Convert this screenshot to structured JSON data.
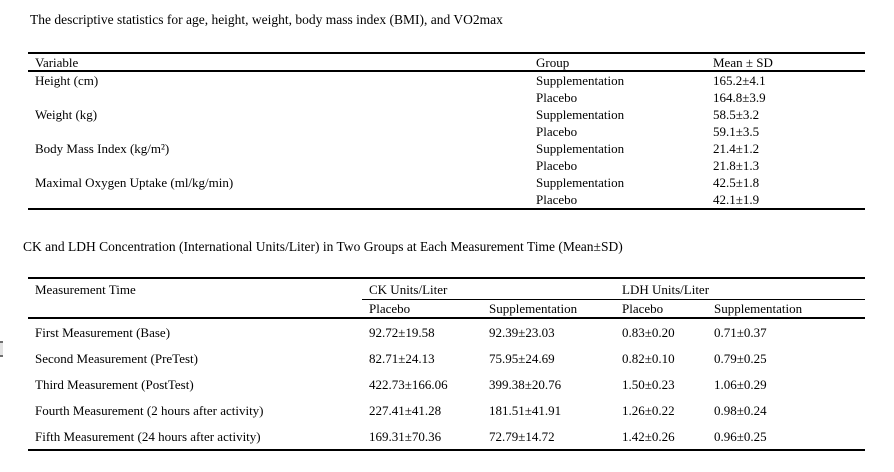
{
  "table1": {
    "caption": "The descriptive statistics for age, height, weight, body mass index (BMI), and VO2max",
    "headers": {
      "variable": "Variable",
      "group": "Group",
      "mean_sd": "Mean ± SD"
    },
    "rows": [
      {
        "variable": "Height (cm)",
        "group": "Supplementation",
        "mean_sd": "165.2±4.1"
      },
      {
        "variable": "",
        "group": "Placebo",
        "mean_sd": "164.8±3.9"
      },
      {
        "variable": "Weight (kg)",
        "group": "Supplementation",
        "mean_sd": "58.5±3.2"
      },
      {
        "variable": "",
        "group": "Placebo",
        "mean_sd": "59.1±3.5"
      },
      {
        "variable": "Body Mass Index (kg/m²)",
        "group": "Supplementation",
        "mean_sd": "21.4±1.2"
      },
      {
        "variable": "",
        "group": "Placebo",
        "mean_sd": "21.8±1.3"
      },
      {
        "variable": "Maximal Oxygen Uptake (ml/kg/min)",
        "group": "Supplementation",
        "mean_sd": "42.5±1.8"
      },
      {
        "variable": "",
        "group": "Placebo",
        "mean_sd": "42.1±1.9"
      }
    ]
  },
  "table2": {
    "caption": "CK and LDH Concentration (International Units/Liter) in Two Groups at Each Measurement Time (Mean±SD)",
    "headers": {
      "measurement_time": "Measurement Time",
      "ck_group": "CK Units/Liter",
      "ldh_group": "LDH Units/Liter",
      "ck_placebo": "Placebo",
      "ck_supplementation": "Supplementation",
      "ldh_placebo": "Placebo",
      "ldh_supplementation": "Supplementation"
    },
    "rows": [
      {
        "time": "First Measurement (Base)",
        "ck_placebo": "92.72±19.58",
        "ck_supplementation": "92.39±23.03",
        "ldh_placebo": "0.83±0.20",
        "ldh_supplementation": "0.71±0.37"
      },
      {
        "time": "Second Measurement (PreTest)",
        "ck_placebo": "82.71±24.13",
        "ck_supplementation": "75.95±24.69",
        "ldh_placebo": "0.82±0.10",
        "ldh_supplementation": "0.79±0.25"
      },
      {
        "time": "Third Measurement (PostTest)",
        "ck_placebo": "422.73±166.06",
        "ck_supplementation": "399.38±20.76",
        "ldh_placebo": "1.50±0.23",
        "ldh_supplementation": "1.06±0.29"
      },
      {
        "time": "Fourth Measurement (2 hours after activity)",
        "ck_placebo": "227.41±41.28",
        "ck_supplementation": "181.51±41.91",
        "ldh_placebo": "1.26±0.22",
        "ldh_supplementation": "0.98±0.24"
      },
      {
        "time": "Fifth Measurement (24 hours after activity)",
        "ck_placebo": "169.31±70.36",
        "ck_supplementation": "72.79±14.72",
        "ldh_placebo": "1.42±0.26",
        "ldh_supplementation": "0.96±0.25"
      }
    ]
  }
}
